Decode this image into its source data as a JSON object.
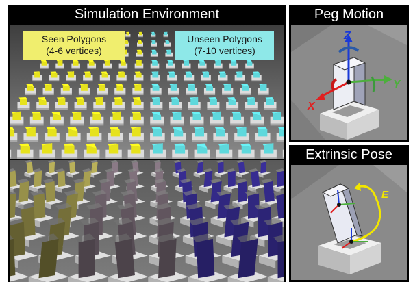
{
  "panels": {
    "sim": {
      "title": "Simulation Environment"
    },
    "peg": {
      "title": "Peg Motion"
    },
    "ext": {
      "title": "Extrinsic Pose"
    }
  },
  "legend": {
    "seen": {
      "line1": "Seen Polygons",
      "line2": "(4-6 vertices)",
      "color": "#f0ee6e"
    },
    "unseen": {
      "line1": "Unseen Polygons",
      "line2": "(7-10 vertices)",
      "color": "#8ee8e8"
    }
  },
  "axes": {
    "x": {
      "label": "X",
      "color": "#e02020"
    },
    "y": {
      "label": "Y",
      "color": "#4caf3c"
    },
    "z": {
      "label": "Z",
      "color": "#1a3ad8"
    }
  },
  "extrinsic": {
    "label": "E",
    "color": "#f2e600"
  },
  "colors": {
    "seen_peg": "#e6e21c",
    "unseen_peg": "#5ed8dc",
    "dark_peg": "#1e1e6e",
    "floor": "#6b6b6b",
    "base": "#d9d9d9"
  }
}
